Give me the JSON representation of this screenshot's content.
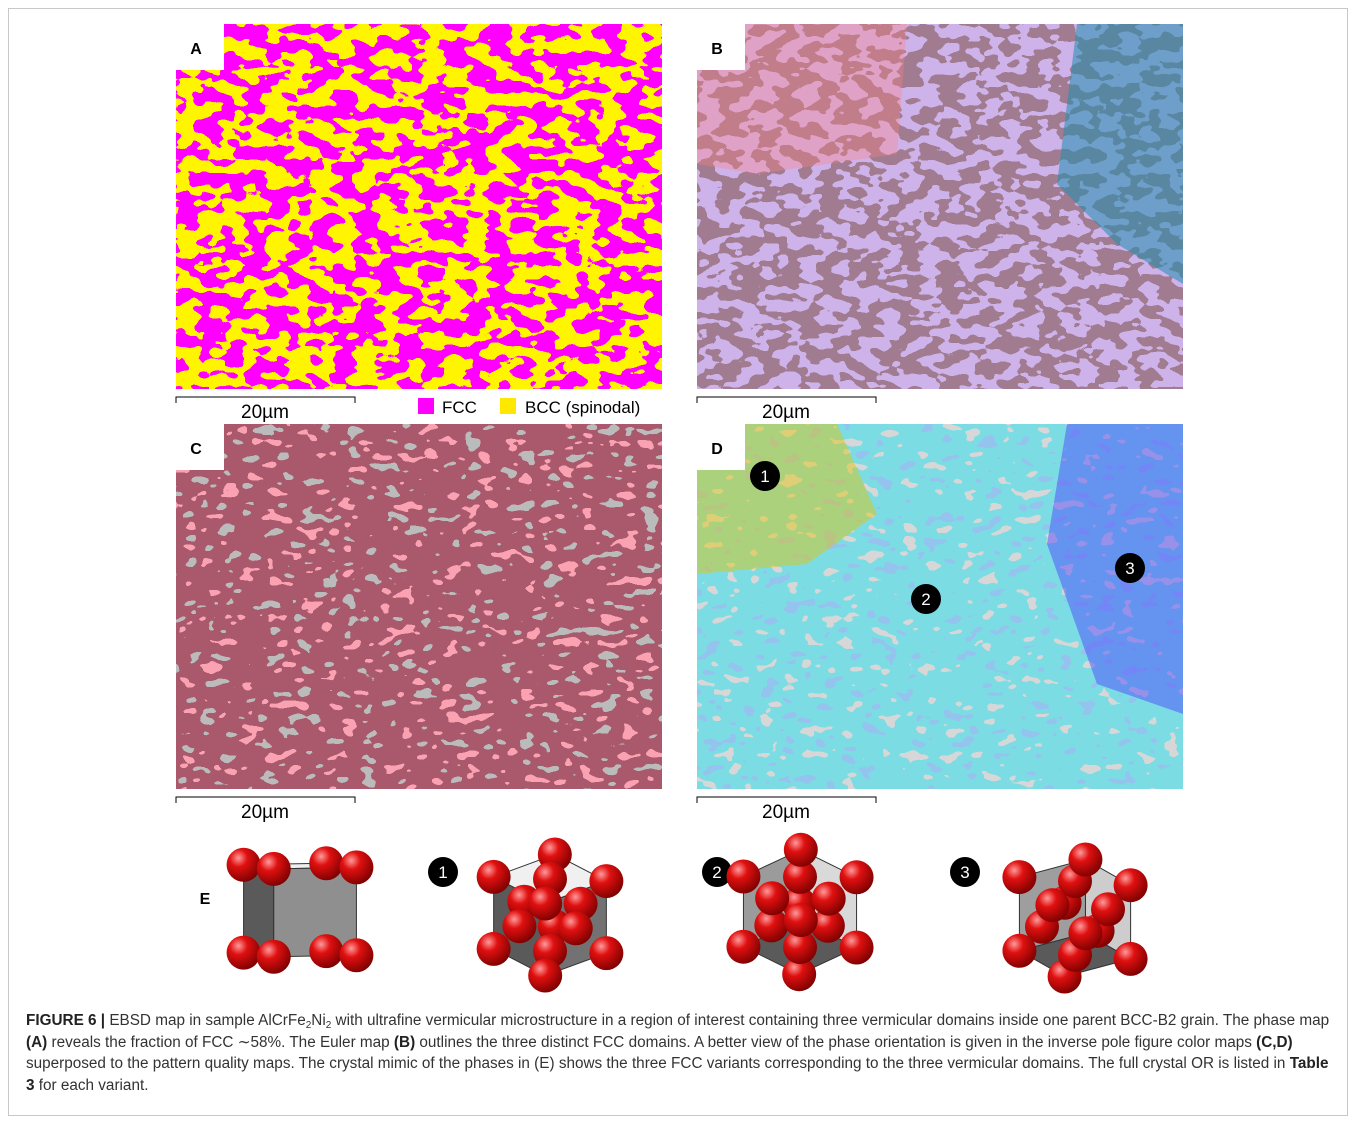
{
  "panels": [
    {
      "label": "A",
      "scale_bar": "20µm"
    },
    {
      "label": "B",
      "scale_bar": "20µm"
    },
    {
      "label": "C",
      "scale_bar": "20µm"
    },
    {
      "label": "D",
      "scale_bar": "20µm"
    }
  ],
  "legend": [
    {
      "label": "FCC",
      "color": "#ff00ff"
    },
    {
      "label": "BCC (spinodal)",
      "color": "#ffe800"
    }
  ],
  "domain_markers": [
    "1",
    "2",
    "3"
  ],
  "panel_e": {
    "label": "E",
    "variants": [
      "1",
      "2",
      "3"
    ]
  },
  "caption": [
    {
      "text": "FIGURE 6 |",
      "style": "bold"
    },
    {
      "text": " EBSD map in sample AlCrFe",
      "style": "normal"
    },
    {
      "text": "2",
      "style": "sub"
    },
    {
      "text": "Ni",
      "style": "normal"
    },
    {
      "text": "2",
      "style": "sub"
    },
    {
      "text": " with ultrafine vermicular microstructure in a region of interest containing three vermicular domains inside one parent BCC-B2 grain. The phase map ",
      "style": "normal"
    },
    {
      "text": "(A)",
      "style": "bold"
    },
    {
      "text": " reveals the fraction of FCC ∼58%. The Euler map ",
      "style": "normal"
    },
    {
      "text": "(B)",
      "style": "bold"
    },
    {
      "text": " outlines the three distinct FCC domains. A better view of the phase orientation is given in the inverse pole figure color maps ",
      "style": "normal"
    },
    {
      "text": "(C,D)",
      "style": "bold"
    },
    {
      "text": " superposed to the pattern quality maps. The crystal mimic of the phases in (E) shows the three FCC variants corresponding to the three vermicular domains. The full crystal OR is listed in ",
      "style": "normal"
    },
    {
      "text": "Table 3",
      "style": "bold"
    },
    {
      "text": " for each variant.",
      "style": "normal"
    }
  ]
}
